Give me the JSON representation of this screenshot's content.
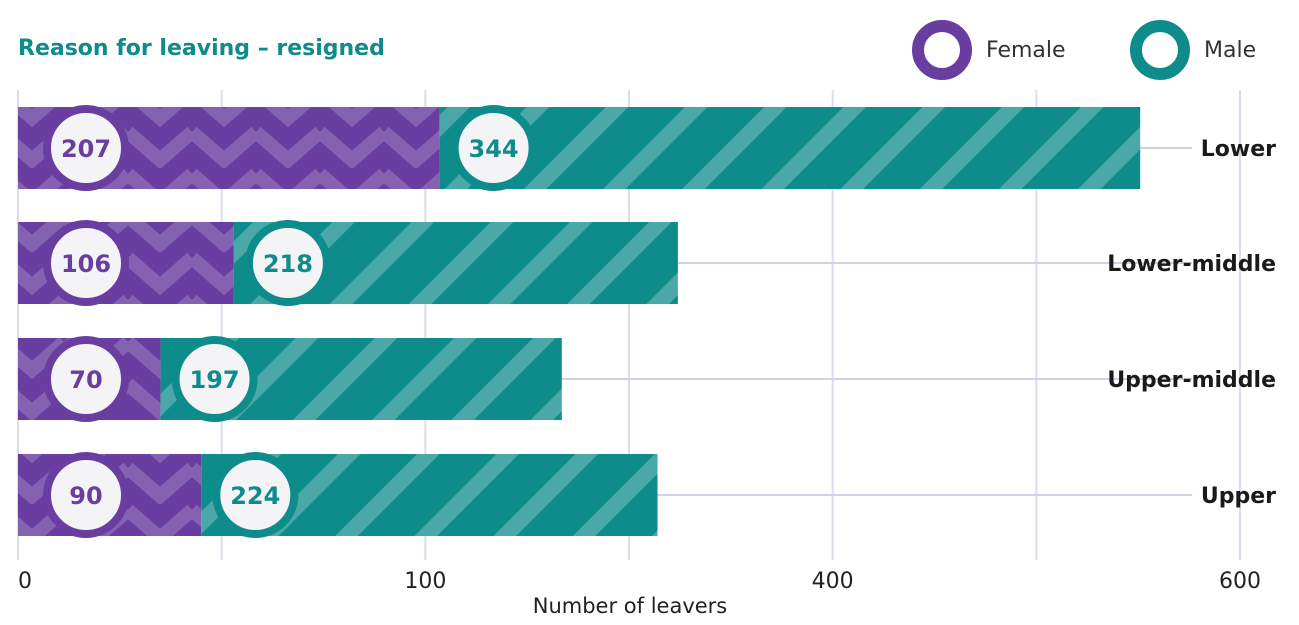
{
  "title": "Reason for leaving – resigned",
  "colors": {
    "title": "#0e8b8b",
    "female": "#6a3ea1",
    "male": "#0e8b8b",
    "grid": "#dcdcec",
    "connector": "#d0d0e6"
  },
  "legend": [
    {
      "label": "Female",
      "color": "#6a3ea1"
    },
    {
      "label": "Male",
      "color": "#0e8b8b"
    }
  ],
  "chart_data": {
    "type": "bar",
    "orientation": "horizontal",
    "stacked": true,
    "categories": [
      "Lower",
      "Lower-middle",
      "Upper-middle",
      "Upper"
    ],
    "series": [
      {
        "name": "Female",
        "values": [
          207,
          106,
          70,
          90
        ]
      },
      {
        "name": "Male",
        "values": [
          344,
          218,
          197,
          224
        ]
      }
    ],
    "x_tick_labels": [
      "0",
      "100",
      "400",
      "600"
    ],
    "xlabel": "Number of leavers",
    "grid": true,
    "legend_position": "top-right"
  }
}
